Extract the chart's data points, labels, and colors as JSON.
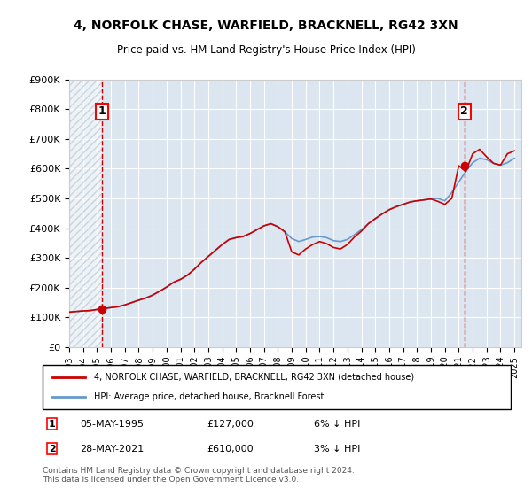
{
  "title": "4, NORFOLK CHASE, WARFIELD, BRACKNELL, RG42 3XN",
  "subtitle": "Price paid vs. HM Land Registry's House Price Index (HPI)",
  "ylabel_ticks": [
    "£0",
    "£100K",
    "£200K",
    "£300K",
    "£400K",
    "£500K",
    "£600K",
    "£700K",
    "£800K",
    "£900K"
  ],
  "ytick_values": [
    0,
    100000,
    200000,
    300000,
    400000,
    500000,
    600000,
    700000,
    800000,
    900000
  ],
  "ylim": [
    0,
    900000
  ],
  "xlim_start": 1993.0,
  "xlim_end": 2025.5,
  "hpi_color": "#6699cc",
  "price_color": "#cc0000",
  "bg_color": "#e8eef4",
  "plot_bg": "#dce6f0",
  "hatch_color": "#c8d4e0",
  "legend_line1": "4, NORFOLK CHASE, WARFIELD, BRACKNELL, RG42 3XN (detached house)",
  "legend_line2": "HPI: Average price, detached house, Bracknell Forest",
  "sale1_label": "1",
  "sale1_date": "05-MAY-1995",
  "sale1_price": "£127,000",
  "sale1_pct": "6% ↓ HPI",
  "sale1_year": 1995.35,
  "sale1_value": 127000,
  "sale2_label": "2",
  "sale2_date": "28-MAY-2021",
  "sale2_price": "£610,000",
  "sale2_pct": "3% ↓ HPI",
  "sale2_year": 2021.41,
  "sale2_value": 610000,
  "footer": "Contains HM Land Registry data © Crown copyright and database right 2024.\nThis data is licensed under the Open Government Licence v3.0.",
  "hpi_years": [
    1993.0,
    1993.5,
    1994.0,
    1994.5,
    1995.0,
    1995.5,
    1996.0,
    1996.5,
    1997.0,
    1997.5,
    1998.0,
    1998.5,
    1999.0,
    1999.5,
    2000.0,
    2000.5,
    2001.0,
    2001.5,
    2002.0,
    2002.5,
    2003.0,
    2003.5,
    2004.0,
    2004.5,
    2005.0,
    2005.5,
    2006.0,
    2006.5,
    2007.0,
    2007.5,
    2008.0,
    2008.5,
    2009.0,
    2009.5,
    2010.0,
    2010.5,
    2011.0,
    2011.5,
    2012.0,
    2012.5,
    2013.0,
    2013.5,
    2014.0,
    2014.5,
    2015.0,
    2015.5,
    2016.0,
    2016.5,
    2017.0,
    2017.5,
    2018.0,
    2018.5,
    2019.0,
    2019.5,
    2020.0,
    2020.5,
    2021.0,
    2021.5,
    2022.0,
    2022.5,
    2023.0,
    2023.5,
    2024.0,
    2024.5,
    2025.0
  ],
  "hpi_values": [
    118000,
    120000,
    122000,
    123000,
    126000,
    130000,
    133000,
    136000,
    142000,
    150000,
    158000,
    165000,
    175000,
    188000,
    202000,
    218000,
    228000,
    242000,
    262000,
    285000,
    305000,
    325000,
    345000,
    362000,
    368000,
    372000,
    382000,
    395000,
    408000,
    415000,
    405000,
    388000,
    365000,
    355000,
    362000,
    370000,
    372000,
    368000,
    358000,
    355000,
    362000,
    378000,
    395000,
    415000,
    432000,
    448000,
    462000,
    472000,
    480000,
    488000,
    492000,
    495000,
    498000,
    500000,
    492000,
    520000,
    555000,
    590000,
    620000,
    635000,
    630000,
    618000,
    612000,
    620000,
    635000
  ],
  "price_years": [
    1993.0,
    1993.5,
    1994.0,
    1994.5,
    1995.0,
    1995.5,
    1996.0,
    1996.5,
    1997.0,
    1997.5,
    1998.0,
    1998.5,
    1999.0,
    1999.5,
    2000.0,
    2000.5,
    2001.0,
    2001.5,
    2002.0,
    2002.5,
    2003.0,
    2003.5,
    2004.0,
    2004.5,
    2005.0,
    2005.5,
    2006.0,
    2006.5,
    2007.0,
    2007.5,
    2008.0,
    2008.5,
    2009.0,
    2009.5,
    2010.0,
    2010.5,
    2011.0,
    2011.5,
    2012.0,
    2012.5,
    2013.0,
    2013.5,
    2014.0,
    2014.5,
    2015.0,
    2015.5,
    2016.0,
    2016.5,
    2017.0,
    2017.5,
    2018.0,
    2018.5,
    2019.0,
    2019.5,
    2020.0,
    2020.5,
    2021.0,
    2021.5,
    2022.0,
    2022.5,
    2023.0,
    2023.5,
    2024.0,
    2024.5,
    2025.0
  ],
  "price_values": [
    118000,
    120000,
    122000,
    123000,
    127000,
    130000,
    133000,
    136000,
    142000,
    150000,
    158000,
    165000,
    175000,
    188000,
    202000,
    218000,
    228000,
    242000,
    262000,
    285000,
    305000,
    325000,
    345000,
    362000,
    368000,
    372000,
    382000,
    395000,
    408000,
    415000,
    405000,
    388000,
    320000,
    310000,
    330000,
    345000,
    355000,
    348000,
    335000,
    330000,
    345000,
    370000,
    390000,
    415000,
    432000,
    448000,
    462000,
    472000,
    480000,
    488000,
    492000,
    495000,
    498000,
    490000,
    480000,
    500000,
    610000,
    590000,
    650000,
    665000,
    640000,
    618000,
    612000,
    650000,
    660000
  ]
}
